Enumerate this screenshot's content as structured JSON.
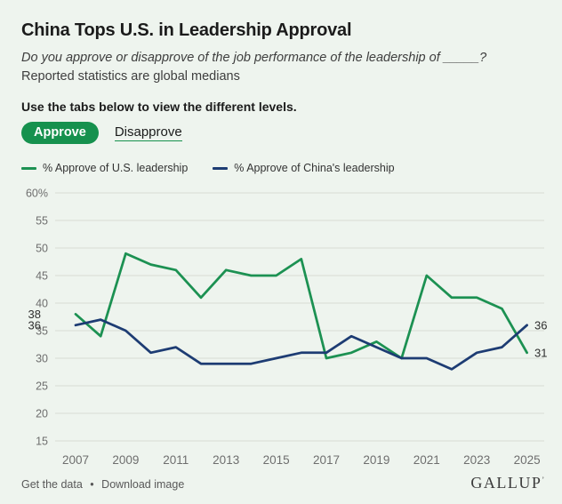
{
  "colors": {
    "background": "#eef4ee",
    "accent_green": "#16914e",
    "us_line": "#1c9152",
    "china_line": "#1d3c73",
    "grid": "#d8ddd4",
    "tick_text": "#6e6e6e",
    "data_label_text": "#2f2f2f"
  },
  "header": {
    "title": "China Tops U.S. in Leadership Approval",
    "question": "Do you approve or disapprove of the job performance of the leadership of _____?",
    "note": "Reported statistics are global medians"
  },
  "tabs": {
    "instruction": "Use the tabs below to view the different levels.",
    "active_label": "Approve",
    "inactive_label": "Disapprove"
  },
  "chart_data": {
    "type": "line",
    "title": "",
    "xlabel": "",
    "ylabel": "",
    "unit": "%",
    "grid": true,
    "legend_position": "top",
    "ylim": [
      15,
      60
    ],
    "yticks": [
      15,
      20,
      25,
      30,
      35,
      40,
      45,
      50,
      55,
      60
    ],
    "ytick_top_label": "60%",
    "xticks": [
      2007,
      2009,
      2011,
      2013,
      2015,
      2017,
      2019,
      2021,
      2023,
      2025
    ],
    "x": [
      2007,
      2008,
      2009,
      2010,
      2011,
      2012,
      2013,
      2014,
      2015,
      2016,
      2017,
      2018,
      2019,
      2020,
      2021,
      2022,
      2023,
      2024,
      2025
    ],
    "series": [
      {
        "name": "% Approve of U.S. leadership",
        "color": "#1c9152",
        "values": [
          38,
          34,
          49,
          47,
          46,
          41,
          46,
          45,
          45,
          48,
          30,
          31,
          33,
          30,
          45,
          41,
          41,
          39,
          31
        ],
        "start_label": "38",
        "end_label": "31"
      },
      {
        "name": "% Approve of China's leadership",
        "color": "#1d3c73",
        "values": [
          36,
          37,
          35,
          31,
          32,
          29,
          29,
          29,
          30,
          31,
          31,
          34,
          32,
          30,
          30,
          28,
          31,
          32,
          36
        ],
        "start_label": "36",
        "end_label": "36"
      }
    ]
  },
  "footer": {
    "link_get_data": "Get the data",
    "separator": "•",
    "link_download": "Download image",
    "brand": "GALLUP",
    "brand_mark": "’"
  }
}
